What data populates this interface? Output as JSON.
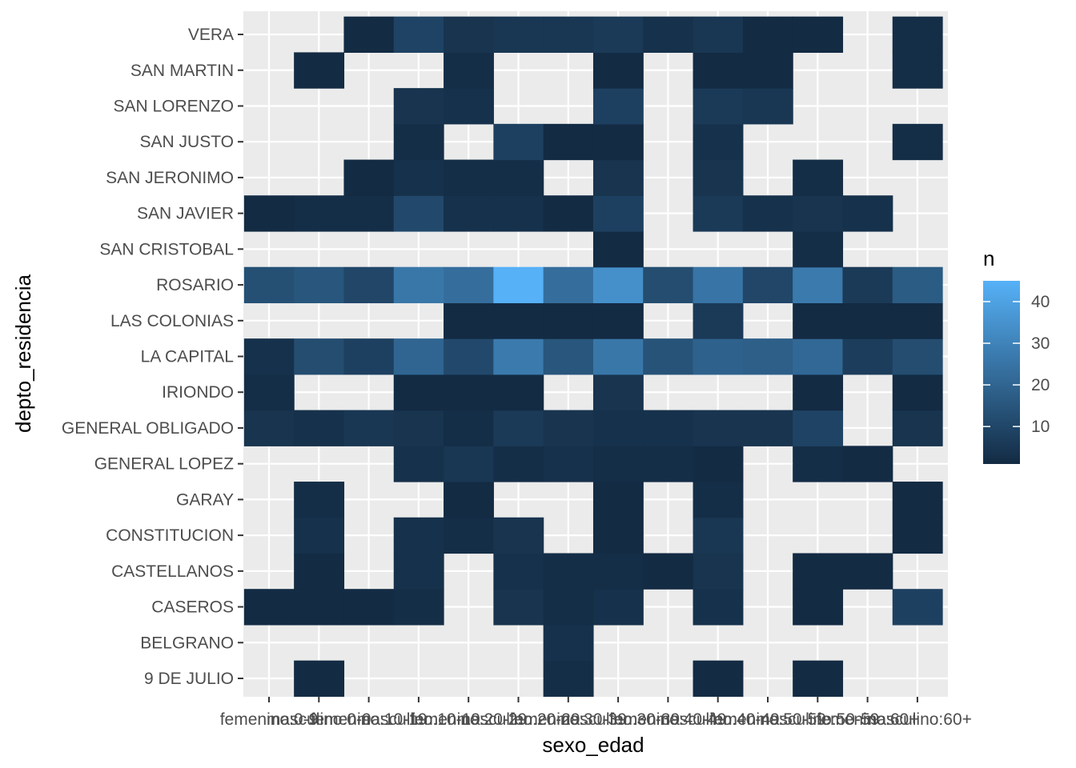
{
  "chart_data": {
    "type": "heatmap",
    "xlabel": "sexo_edad",
    "ylabel": "depto_residencia",
    "x_categories": [
      "femenino:0-9",
      "masculino:0-9",
      "femenino:10-19",
      "masculino:10-19",
      "femenino:20-29",
      "masculino:20-29",
      "femenino:30-39",
      "masculino:30-39",
      "femenino:40-49",
      "masculino:40-49",
      "femenino:50-59",
      "masculino:50-59",
      "femenino:60+",
      "masculino:60+"
    ],
    "y_categories": [
      "9 DE JULIO",
      "BELGRANO",
      "CASEROS",
      "CASTELLANOS",
      "CONSTITUCION",
      "GARAY",
      "GENERAL LOPEZ",
      "GENERAL OBLIGADO",
      "IRIONDO",
      "LA CAPITAL",
      "LAS COLONIAS",
      "ROSARIO",
      "SAN CRISTOBAL",
      "SAN JAVIER",
      "SAN JERONIMO",
      "SAN JUSTO",
      "SAN LORENZO",
      "SAN MARTIN",
      "VERA"
    ],
    "cells": [
      {
        "x": "masculino:0-9",
        "y": "9 DE JULIO",
        "n": 1
      },
      {
        "x": "femenino:30-39",
        "y": "9 DE JULIO",
        "n": 2
      },
      {
        "x": "masculino:40-49",
        "y": "9 DE JULIO",
        "n": 1
      },
      {
        "x": "masculino:50-59",
        "y": "9 DE JULIO",
        "n": 1
      },
      {
        "x": "femenino:30-39",
        "y": "BELGRANO",
        "n": 3
      },
      {
        "x": "femenino:0-9",
        "y": "CASEROS",
        "n": 1
      },
      {
        "x": "masculino:0-9",
        "y": "CASEROS",
        "n": 1
      },
      {
        "x": "femenino:10-19",
        "y": "CASEROS",
        "n": 1
      },
      {
        "x": "masculino:10-19",
        "y": "CASEROS",
        "n": 2
      },
      {
        "x": "masculino:20-29",
        "y": "CASEROS",
        "n": 4
      },
      {
        "x": "femenino:30-39",
        "y": "CASEROS",
        "n": 2
      },
      {
        "x": "masculino:30-39",
        "y": "CASEROS",
        "n": 3
      },
      {
        "x": "masculino:40-49",
        "y": "CASEROS",
        "n": 3
      },
      {
        "x": "masculino:50-59",
        "y": "CASEROS",
        "n": 1
      },
      {
        "x": "masculino:60+",
        "y": "CASEROS",
        "n": 8
      },
      {
        "x": "masculino:0-9",
        "y": "CASTELLANOS",
        "n": 1
      },
      {
        "x": "masculino:10-19",
        "y": "CASTELLANOS",
        "n": 3
      },
      {
        "x": "masculino:20-29",
        "y": "CASTELLANOS",
        "n": 3
      },
      {
        "x": "femenino:30-39",
        "y": "CASTELLANOS",
        "n": 2
      },
      {
        "x": "masculino:30-39",
        "y": "CASTELLANOS",
        "n": 2
      },
      {
        "x": "femenino:40-49",
        "y": "CASTELLANOS",
        "n": 1
      },
      {
        "x": "masculino:40-49",
        "y": "CASTELLANOS",
        "n": 4
      },
      {
        "x": "masculino:50-59",
        "y": "CASTELLANOS",
        "n": 1
      },
      {
        "x": "femenino:60+",
        "y": "CASTELLANOS",
        "n": 1
      },
      {
        "x": "masculino:0-9",
        "y": "CONSTITUCION",
        "n": 3
      },
      {
        "x": "masculino:10-19",
        "y": "CONSTITUCION",
        "n": 3
      },
      {
        "x": "femenino:20-29",
        "y": "CONSTITUCION",
        "n": 2
      },
      {
        "x": "masculino:20-29",
        "y": "CONSTITUCION",
        "n": 4
      },
      {
        "x": "masculino:30-39",
        "y": "CONSTITUCION",
        "n": 1
      },
      {
        "x": "masculino:40-49",
        "y": "CONSTITUCION",
        "n": 5
      },
      {
        "x": "masculino:60+",
        "y": "CONSTITUCION",
        "n": 1
      },
      {
        "x": "masculino:0-9",
        "y": "GARAY",
        "n": 2
      },
      {
        "x": "femenino:20-29",
        "y": "GARAY",
        "n": 1
      },
      {
        "x": "masculino:30-39",
        "y": "GARAY",
        "n": 1
      },
      {
        "x": "masculino:40-49",
        "y": "GARAY",
        "n": 2
      },
      {
        "x": "masculino:60+",
        "y": "GARAY",
        "n": 1
      },
      {
        "x": "masculino:10-19",
        "y": "GENERAL LOPEZ",
        "n": 3
      },
      {
        "x": "femenino:20-29",
        "y": "GENERAL LOPEZ",
        "n": 5
      },
      {
        "x": "masculino:20-29",
        "y": "GENERAL LOPEZ",
        "n": 2
      },
      {
        "x": "femenino:30-39",
        "y": "GENERAL LOPEZ",
        "n": 3
      },
      {
        "x": "masculino:30-39",
        "y": "GENERAL LOPEZ",
        "n": 2
      },
      {
        "x": "femenino:40-49",
        "y": "GENERAL LOPEZ",
        "n": 2
      },
      {
        "x": "masculino:40-49",
        "y": "GENERAL LOPEZ",
        "n": 1
      },
      {
        "x": "masculino:50-59",
        "y": "GENERAL LOPEZ",
        "n": 2
      },
      {
        "x": "femenino:60+",
        "y": "GENERAL LOPEZ",
        "n": 1
      },
      {
        "x": "femenino:0-9",
        "y": "GENERAL OBLIGADO",
        "n": 4
      },
      {
        "x": "masculino:0-9",
        "y": "GENERAL OBLIGADO",
        "n": 3
      },
      {
        "x": "femenino:10-19",
        "y": "GENERAL OBLIGADO",
        "n": 5
      },
      {
        "x": "masculino:10-19",
        "y": "GENERAL OBLIGADO",
        "n": 4
      },
      {
        "x": "femenino:20-29",
        "y": "GENERAL OBLIGADO",
        "n": 2
      },
      {
        "x": "masculino:20-29",
        "y": "GENERAL OBLIGADO",
        "n": 6
      },
      {
        "x": "femenino:30-39",
        "y": "GENERAL OBLIGADO",
        "n": 4
      },
      {
        "x": "masculino:30-39",
        "y": "GENERAL OBLIGADO",
        "n": 3
      },
      {
        "x": "femenino:40-49",
        "y": "GENERAL OBLIGADO",
        "n": 3
      },
      {
        "x": "masculino:40-49",
        "y": "GENERAL OBLIGADO",
        "n": 4
      },
      {
        "x": "femenino:50-59",
        "y": "GENERAL OBLIGADO",
        "n": 4
      },
      {
        "x": "masculino:50-59",
        "y": "GENERAL OBLIGADO",
        "n": 9
      },
      {
        "x": "masculino:60+",
        "y": "GENERAL OBLIGADO",
        "n": 4
      },
      {
        "x": "femenino:0-9",
        "y": "IRIONDO",
        "n": 2
      },
      {
        "x": "masculino:10-19",
        "y": "IRIONDO",
        "n": 1
      },
      {
        "x": "femenino:20-29",
        "y": "IRIONDO",
        "n": 1
      },
      {
        "x": "masculino:20-29",
        "y": "IRIONDO",
        "n": 1
      },
      {
        "x": "masculino:30-39",
        "y": "IRIONDO",
        "n": 4
      },
      {
        "x": "masculino:50-59",
        "y": "IRIONDO",
        "n": 1
      },
      {
        "x": "masculino:60+",
        "y": "IRIONDO",
        "n": 1
      },
      {
        "x": "femenino:0-9",
        "y": "LA CAPITAL",
        "n": 3
      },
      {
        "x": "masculino:0-9",
        "y": "LA CAPITAL",
        "n": 12
      },
      {
        "x": "femenino:10-19",
        "y": "LA CAPITAL",
        "n": 8
      },
      {
        "x": "masculino:10-19",
        "y": "LA CAPITAL",
        "n": 20
      },
      {
        "x": "femenino:20-29",
        "y": "LA CAPITAL",
        "n": 11
      },
      {
        "x": "masculino:20-29",
        "y": "LA CAPITAL",
        "n": 27
      },
      {
        "x": "femenino:30-39",
        "y": "LA CAPITAL",
        "n": 15
      },
      {
        "x": "masculino:30-39",
        "y": "LA CAPITAL",
        "n": 26
      },
      {
        "x": "femenino:40-49",
        "y": "LA CAPITAL",
        "n": 14
      },
      {
        "x": "masculino:40-49",
        "y": "LA CAPITAL",
        "n": 19
      },
      {
        "x": "femenino:50-59",
        "y": "LA CAPITAL",
        "n": 18
      },
      {
        "x": "masculino:50-59",
        "y": "LA CAPITAL",
        "n": 21
      },
      {
        "x": "femenino:60+",
        "y": "LA CAPITAL",
        "n": 7
      },
      {
        "x": "masculino:60+",
        "y": "LA CAPITAL",
        "n": 12
      },
      {
        "x": "femenino:20-29",
        "y": "LAS COLONIAS",
        "n": 1
      },
      {
        "x": "masculino:20-29",
        "y": "LAS COLONIAS",
        "n": 1
      },
      {
        "x": "femenino:30-39",
        "y": "LAS COLONIAS",
        "n": 1
      },
      {
        "x": "masculino:30-39",
        "y": "LAS COLONIAS",
        "n": 1
      },
      {
        "x": "masculino:40-49",
        "y": "LAS COLONIAS",
        "n": 6
      },
      {
        "x": "masculino:50-59",
        "y": "LAS COLONIAS",
        "n": 1
      },
      {
        "x": "femenino:60+",
        "y": "LAS COLONIAS",
        "n": 1
      },
      {
        "x": "masculino:60+",
        "y": "LAS COLONIAS",
        "n": 1
      },
      {
        "x": "femenino:0-9",
        "y": "ROSARIO",
        "n": 13
      },
      {
        "x": "masculino:0-9",
        "y": "ROSARIO",
        "n": 15
      },
      {
        "x": "femenino:10-19",
        "y": "ROSARIO",
        "n": 10
      },
      {
        "x": "masculino:10-19",
        "y": "ROSARIO",
        "n": 26
      },
      {
        "x": "femenino:20-29",
        "y": "ROSARIO",
        "n": 23
      },
      {
        "x": "masculino:20-29",
        "y": "ROSARIO",
        "n": 45
      },
      {
        "x": "femenino:30-39",
        "y": "ROSARIO",
        "n": 23
      },
      {
        "x": "masculino:30-39",
        "y": "ROSARIO",
        "n": 34
      },
      {
        "x": "femenino:40-49",
        "y": "ROSARIO",
        "n": 12
      },
      {
        "x": "masculino:40-49",
        "y": "ROSARIO",
        "n": 25
      },
      {
        "x": "femenino:50-59",
        "y": "ROSARIO",
        "n": 10
      },
      {
        "x": "masculino:50-59",
        "y": "ROSARIO",
        "n": 27
      },
      {
        "x": "femenino:60+",
        "y": "ROSARIO",
        "n": 6
      },
      {
        "x": "masculino:60+",
        "y": "ROSARIO",
        "n": 17
      },
      {
        "x": "masculino:30-39",
        "y": "SAN CRISTOBAL",
        "n": 1
      },
      {
        "x": "masculino:50-59",
        "y": "SAN CRISTOBAL",
        "n": 2
      },
      {
        "x": "femenino:0-9",
        "y": "SAN JAVIER",
        "n": 1
      },
      {
        "x": "masculino:0-9",
        "y": "SAN JAVIER",
        "n": 2
      },
      {
        "x": "femenino:10-19",
        "y": "SAN JAVIER",
        "n": 2
      },
      {
        "x": "masculino:10-19",
        "y": "SAN JAVIER",
        "n": 11
      },
      {
        "x": "femenino:20-29",
        "y": "SAN JAVIER",
        "n": 3
      },
      {
        "x": "masculino:20-29",
        "y": "SAN JAVIER",
        "n": 3
      },
      {
        "x": "femenino:30-39",
        "y": "SAN JAVIER",
        "n": 1
      },
      {
        "x": "masculino:30-39",
        "y": "SAN JAVIER",
        "n": 8
      },
      {
        "x": "masculino:40-49",
        "y": "SAN JAVIER",
        "n": 6
      },
      {
        "x": "femenino:50-59",
        "y": "SAN JAVIER",
        "n": 3
      },
      {
        "x": "masculino:50-59",
        "y": "SAN JAVIER",
        "n": 4
      },
      {
        "x": "femenino:60+",
        "y": "SAN JAVIER",
        "n": 3
      },
      {
        "x": "femenino:10-19",
        "y": "SAN JERONIMO",
        "n": 1
      },
      {
        "x": "masculino:10-19",
        "y": "SAN JERONIMO",
        "n": 3
      },
      {
        "x": "femenino:20-29",
        "y": "SAN JERONIMO",
        "n": 2
      },
      {
        "x": "masculino:20-29",
        "y": "SAN JERONIMO",
        "n": 2
      },
      {
        "x": "masculino:30-39",
        "y": "SAN JERONIMO",
        "n": 4
      },
      {
        "x": "masculino:40-49",
        "y": "SAN JERONIMO",
        "n": 4
      },
      {
        "x": "masculino:50-59",
        "y": "SAN JERONIMO",
        "n": 2
      },
      {
        "x": "masculino:10-19",
        "y": "SAN JUSTO",
        "n": 2
      },
      {
        "x": "masculino:20-29",
        "y": "SAN JUSTO",
        "n": 8
      },
      {
        "x": "femenino:30-39",
        "y": "SAN JUSTO",
        "n": 1
      },
      {
        "x": "masculino:30-39",
        "y": "SAN JUSTO",
        "n": 1
      },
      {
        "x": "masculino:40-49",
        "y": "SAN JUSTO",
        "n": 3
      },
      {
        "x": "masculino:60+",
        "y": "SAN JUSTO",
        "n": 2
      },
      {
        "x": "masculino:10-19",
        "y": "SAN LORENZO",
        "n": 4
      },
      {
        "x": "femenino:20-29",
        "y": "SAN LORENZO",
        "n": 3
      },
      {
        "x": "masculino:30-39",
        "y": "SAN LORENZO",
        "n": 8
      },
      {
        "x": "masculino:40-49",
        "y": "SAN LORENZO",
        "n": 6
      },
      {
        "x": "femenino:50-59",
        "y": "SAN LORENZO",
        "n": 5
      },
      {
        "x": "masculino:0-9",
        "y": "SAN MARTIN",
        "n": 1
      },
      {
        "x": "femenino:20-29",
        "y": "SAN MARTIN",
        "n": 2
      },
      {
        "x": "masculino:30-39",
        "y": "SAN MARTIN",
        "n": 1
      },
      {
        "x": "masculino:40-49",
        "y": "SAN MARTIN",
        "n": 1
      },
      {
        "x": "femenino:50-59",
        "y": "SAN MARTIN",
        "n": 1
      },
      {
        "x": "masculino:60+",
        "y": "SAN MARTIN",
        "n": 2
      },
      {
        "x": "femenino:10-19",
        "y": "VERA",
        "n": 1
      },
      {
        "x": "masculino:10-19",
        "y": "VERA",
        "n": 9
      },
      {
        "x": "femenino:20-29",
        "y": "VERA",
        "n": 4
      },
      {
        "x": "masculino:20-29",
        "y": "VERA",
        "n": 5
      },
      {
        "x": "femenino:30-39",
        "y": "VERA",
        "n": 5
      },
      {
        "x": "masculino:30-39",
        "y": "VERA",
        "n": 6
      },
      {
        "x": "femenino:40-49",
        "y": "VERA",
        "n": 3
      },
      {
        "x": "masculino:40-49",
        "y": "VERA",
        "n": 5
      },
      {
        "x": "femenino:50-59",
        "y": "VERA",
        "n": 1
      },
      {
        "x": "masculino:50-59",
        "y": "VERA",
        "n": 1
      },
      {
        "x": "masculino:60+",
        "y": "VERA",
        "n": 2
      }
    ],
    "legend": {
      "title": "n",
      "breaks": [
        10,
        20,
        30,
        40
      ],
      "range": [
        1,
        45
      ],
      "low_color": "#132B43",
      "high_color": "#56B1F7",
      "position": "right"
    },
    "grid": true,
    "panel_background": "#EBEBEB"
  }
}
